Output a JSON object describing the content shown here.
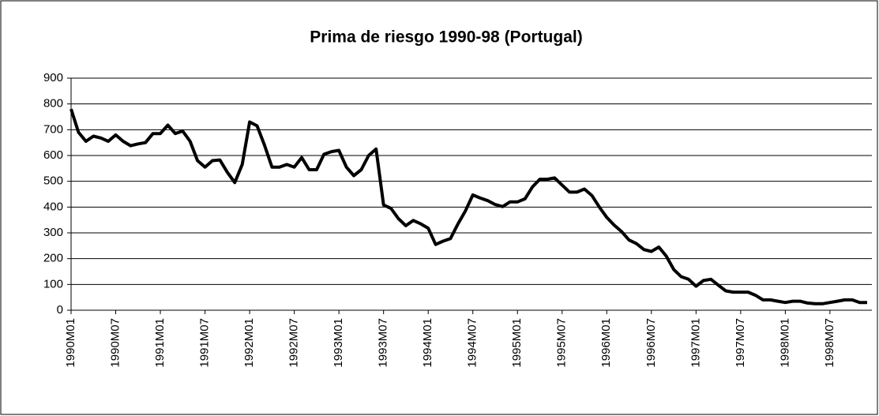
{
  "chart_data": {
    "type": "line",
    "title": "Prima de riesgo 1990-98 (Portugal)",
    "categories": [
      "1990M01",
      null,
      null,
      null,
      null,
      null,
      "1990M07",
      null,
      null,
      null,
      null,
      null,
      "1991M01",
      null,
      null,
      null,
      null,
      null,
      "1991M07",
      null,
      null,
      null,
      null,
      null,
      "1992M01",
      null,
      null,
      null,
      null,
      null,
      "1992M07",
      null,
      null,
      null,
      null,
      null,
      "1993M01",
      null,
      null,
      null,
      null,
      null,
      "1993M07",
      null,
      null,
      null,
      null,
      null,
      "1994M01",
      null,
      null,
      null,
      null,
      null,
      "1994M07",
      null,
      null,
      null,
      null,
      null,
      "1995M01",
      null,
      null,
      null,
      null,
      null,
      "1995M07",
      null,
      null,
      null,
      null,
      null,
      "1996M01",
      null,
      null,
      null,
      null,
      null,
      "1996M07",
      null,
      null,
      null,
      null,
      null,
      "1997M01",
      null,
      null,
      null,
      null,
      null,
      "1997M07",
      null,
      null,
      null,
      null,
      null,
      "1998M01",
      null,
      null,
      null,
      null,
      null,
      "1998M07",
      null,
      null,
      null,
      null,
      null
    ],
    "series": [
      {
        "name": "Prima de riesgo",
        "color": "#000000",
        "values": [
          780,
          690,
          655,
          675,
          668,
          655,
          680,
          655,
          638,
          645,
          650,
          685,
          685,
          718,
          685,
          695,
          655,
          580,
          555,
          580,
          583,
          535,
          495,
          565,
          730,
          715,
          640,
          555,
          555,
          565,
          555,
          592,
          545,
          545,
          605,
          615,
          620,
          555,
          522,
          545,
          600,
          625,
          408,
          395,
          355,
          328,
          348,
          335,
          318,
          255,
          268,
          278,
          335,
          385,
          447,
          435,
          425,
          410,
          402,
          420,
          420,
          432,
          478,
          508,
          508,
          513,
          485,
          458,
          458,
          470,
          445,
          400,
          360,
          330,
          305,
          272,
          258,
          235,
          228,
          245,
          210,
          158,
          130,
          120,
          93,
          115,
          120,
          97,
          75,
          70,
          70,
          70,
          58,
          40,
          40,
          35,
          30,
          35,
          35,
          28,
          25,
          25,
          30,
          35,
          40,
          40,
          30,
          30
        ]
      }
    ],
    "ylim": [
      0,
      900
    ],
    "yticks": [
      0,
      100,
      200,
      300,
      400,
      500,
      600,
      700,
      800,
      900
    ],
    "grid": true
  }
}
